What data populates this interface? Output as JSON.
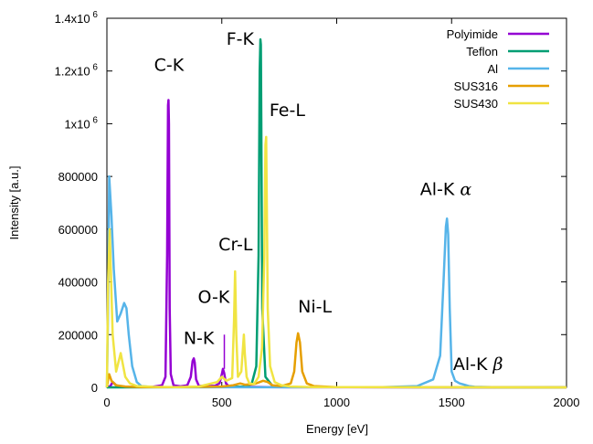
{
  "chart_data": {
    "type": "line",
    "title": "",
    "xlabel": "Energy [eV]",
    "ylabel": "Intensity [a.u.]",
    "xlim": [
      0,
      2000
    ],
    "ylim": [
      0,
      1400000
    ],
    "x_ticks": [
      0,
      500,
      1000,
      1500,
      2000
    ],
    "x_tick_labels": [
      "0",
      "500",
      "1000",
      "1500",
      "2000"
    ],
    "y_ticks": [
      0,
      200000,
      400000,
      600000,
      800000,
      1000000,
      1200000,
      1400000
    ],
    "y_tick_labels": [
      {
        "base": "0",
        "exp": ""
      },
      {
        "base": "200000",
        "exp": ""
      },
      {
        "base": "400000",
        "exp": ""
      },
      {
        "base": "600000",
        "exp": ""
      },
      {
        "base": "800000",
        "exp": ""
      },
      {
        "base": "1x10",
        "exp": "6"
      },
      {
        "base": "1.2x10",
        "exp": "6"
      },
      {
        "base": "1.4x10",
        "exp": "6"
      }
    ],
    "grid": false,
    "legend_position": "top-right",
    "series": [
      {
        "name": "Polyimide",
        "color": "#9400d3",
        "x": [
          0,
          15,
          25,
          40,
          60,
          100,
          150,
          200,
          240,
          255,
          262,
          266,
          268,
          270,
          273,
          278,
          290,
          320,
          350,
          365,
          373,
          378,
          382,
          388,
          400,
          430,
          470,
          490,
          500,
          505,
          510,
          518,
          530,
          560,
          600,
          700,
          800,
          1000,
          1500,
          2000
        ],
        "y": [
          0,
          5000,
          20000,
          8000,
          2000,
          1000,
          1000,
          2000,
          8000,
          40000,
          500000,
          1070000,
          1090000,
          1000000,
          300000,
          50000,
          8000,
          4000,
          8000,
          40000,
          100000,
          110000,
          95000,
          30000,
          6000,
          4000,
          6000,
          15000,
          50000,
          70000,
          55000,
          15000,
          5000,
          3000,
          2000,
          1000,
          500,
          300,
          100,
          50
        ]
      },
      {
        "name": "Teflon",
        "color": "#009e73",
        "x": [
          0,
          500,
          600,
          630,
          650,
          660,
          665,
          668,
          670,
          672,
          676,
          690,
          720,
          800,
          2000
        ],
        "y": [
          0,
          1000,
          3000,
          12000,
          80000,
          500000,
          1200000,
          1320000,
          1300000,
          1000000,
          300000,
          40000,
          6000,
          1000,
          0
        ]
      },
      {
        "name": "Al",
        "color": "#56b4e9",
        "x": [
          0,
          5,
          10,
          20,
          30,
          45,
          60,
          75,
          85,
          95,
          110,
          130,
          150,
          200,
          400,
          800,
          1200,
          1350,
          1420,
          1450,
          1465,
          1475,
          1480,
          1485,
          1492,
          1500,
          1515,
          1535,
          1555,
          1575,
          1600,
          1700,
          2000
        ],
        "y": [
          0,
          300000,
          800000,
          650000,
          450000,
          250000,
          280000,
          320000,
          300000,
          200000,
          80000,
          20000,
          5000,
          1000,
          500,
          500,
          1000,
          5000,
          30000,
          120000,
          400000,
          610000,
          640000,
          580000,
          300000,
          60000,
          25000,
          15000,
          10000,
          5000,
          2000,
          500,
          0
        ]
      },
      {
        "name": "SUS316",
        "color": "#e69f00",
        "x": [
          0,
          5,
          10,
          20,
          40,
          80,
          150,
          300,
          500,
          550,
          580,
          600,
          640,
          680,
          700,
          720,
          760,
          800,
          815,
          825,
          832,
          840,
          850,
          870,
          900,
          1000,
          2000
        ],
        "y": [
          0,
          30000,
          50000,
          25000,
          8000,
          3000,
          1000,
          1000,
          3000,
          8000,
          15000,
          10000,
          12000,
          25000,
          20000,
          8000,
          5000,
          15000,
          60000,
          170000,
          205000,
          170000,
          60000,
          15000,
          5000,
          1000,
          0
        ]
      },
      {
        "name": "SUS430",
        "color": "#f0e442",
        "x": [
          0,
          5,
          12,
          25,
          40,
          60,
          80,
          100,
          130,
          200,
          300,
          400,
          480,
          500,
          520,
          545,
          553,
          558,
          563,
          570,
          585,
          592,
          596,
          600,
          608,
          620,
          640,
          660,
          675,
          685,
          690,
          693,
          696,
          700,
          710,
          730,
          760,
          800,
          900,
          2000
        ],
        "y": [
          0,
          400000,
          600000,
          200000,
          60000,
          130000,
          40000,
          15000,
          5000,
          2000,
          1000,
          3000,
          20000,
          40000,
          25000,
          35000,
          250000,
          440000,
          200000,
          40000,
          60000,
          150000,
          200000,
          130000,
          40000,
          15000,
          12000,
          40000,
          150000,
          500000,
          920000,
          950000,
          700000,
          300000,
          80000,
          20000,
          8000,
          3000,
          1000,
          0
        ]
      }
    ],
    "annotations": [
      {
        "text": "C-K",
        "x": 270,
        "y": 1200000
      },
      {
        "text": "F-K",
        "x": 580,
        "y": 1300000
      },
      {
        "text": "Fe-L",
        "x": 785,
        "y": 1030000
      },
      {
        "text": "Cr-L",
        "x": 560,
        "y": 520000
      },
      {
        "text": "O-K",
        "x": 465,
        "y": 320000
      },
      {
        "text": "N-K",
        "x": 400,
        "y": 165000
      },
      {
        "text": "Ni-L",
        "x": 905,
        "y": 285000
      },
      {
        "text": "Al-K",
        "greek": "α",
        "x": 1475,
        "y": 730000
      },
      {
        "text": "Al-K",
        "greek": "β",
        "x": 1615,
        "y": 65000
      }
    ],
    "marker_line": {
      "x": 511,
      "y_from": 70000,
      "y_to": 200000
    }
  }
}
